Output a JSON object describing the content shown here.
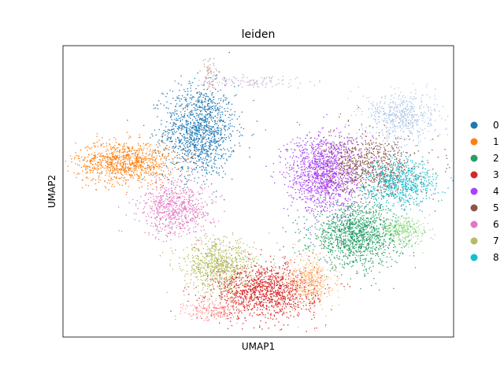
{
  "chart_data": {
    "type": "scatter",
    "title": "leiden",
    "xlabel": "UMAP1",
    "ylabel": "UMAP2",
    "xticks": [],
    "yticks": [],
    "grid": false,
    "legend_placement": "right",
    "legend": [
      {
        "label": "0",
        "color": "#1f77b4"
      },
      {
        "label": "1",
        "color": "#ff7f0e"
      },
      {
        "label": "2",
        "color": "#279e68"
      },
      {
        "label": "3",
        "color": "#d62728"
      },
      {
        "label": "4",
        "color": "#aa40fc"
      },
      {
        "label": "5",
        "color": "#8c564b"
      },
      {
        "label": "6",
        "color": "#e377c2"
      },
      {
        "label": "7",
        "color": "#b5bd61"
      },
      {
        "label": "8",
        "color": "#17becf"
      }
    ],
    "unlabeled_cluster_colors": [
      "#aec7e8",
      "#ffbb78",
      "#98df8a",
      "#ff9896",
      "#c5b0d5",
      "#c49c94"
    ],
    "clusters": [
      {
        "label": "0",
        "color": "#1f77b4",
        "center": [
          3.2,
          8.9
        ],
        "spread": [
          0.55,
          1.1
        ],
        "n": 1300
      },
      {
        "label": "1",
        "color": "#ff7f0e",
        "center": [
          0.9,
          7.4
        ],
        "spread": [
          0.75,
          0.5
        ],
        "n": 950
      },
      {
        "label": "2",
        "color": "#279e68",
        "center": [
          8.0,
          3.9
        ],
        "spread": [
          0.7,
          0.75
        ],
        "n": 1350
      },
      {
        "label": "3",
        "color": "#d62728",
        "center": [
          5.2,
          1.2
        ],
        "spread": [
          0.8,
          0.65
        ],
        "n": 1250
      },
      {
        "label": "4",
        "color": "#aa40fc",
        "center": [
          7.0,
          6.9
        ],
        "spread": [
          0.55,
          0.95
        ],
        "n": 1250
      },
      {
        "label": "5",
        "color": "#8c564b",
        "center": [
          8.4,
          7.2
        ],
        "spread": [
          0.75,
          0.75
        ],
        "n": 850
      },
      {
        "label": "6",
        "color": "#e377c2",
        "center": [
          2.5,
          5.2
        ],
        "spread": [
          0.55,
          0.7
        ],
        "n": 700
      },
      {
        "label": "7",
        "color": "#b5bd61",
        "center": [
          3.8,
          2.4
        ],
        "spread": [
          0.55,
          0.65
        ],
        "n": 800
      },
      {
        "label": "8",
        "color": "#17becf",
        "center": [
          9.4,
          6.4
        ],
        "spread": [
          0.55,
          0.55
        ],
        "n": 650
      },
      {
        "label": "",
        "color": "#aec7e8",
        "center": [
          9.4,
          9.6
        ],
        "spread": [
          0.55,
          0.6
        ],
        "n": 550
      },
      {
        "label": "",
        "color": "#ffbb78",
        "center": [
          6.6,
          1.7
        ],
        "spread": [
          0.35,
          0.6
        ],
        "n": 450
      },
      {
        "label": "",
        "color": "#98df8a",
        "center": [
          9.5,
          4.1
        ],
        "spread": [
          0.35,
          0.35
        ],
        "n": 250
      },
      {
        "label": "",
        "color": "#ff9896",
        "center": [
          3.6,
          0.3
        ],
        "spread": [
          0.45,
          0.25
        ],
        "n": 200
      },
      {
        "label": "",
        "color": "#c5b0d5",
        "center": [
          4.6,
          11.3
        ],
        "spread": [
          0.9,
          0.15
        ],
        "n": 120
      },
      {
        "label": "",
        "color": "#c49c94",
        "center": [
          3.5,
          11.5
        ],
        "spread": [
          0.1,
          0.4
        ],
        "n": 60
      }
    ],
    "xlim": [
      -1,
      11
    ],
    "ylim": [
      -1,
      13
    ]
  }
}
